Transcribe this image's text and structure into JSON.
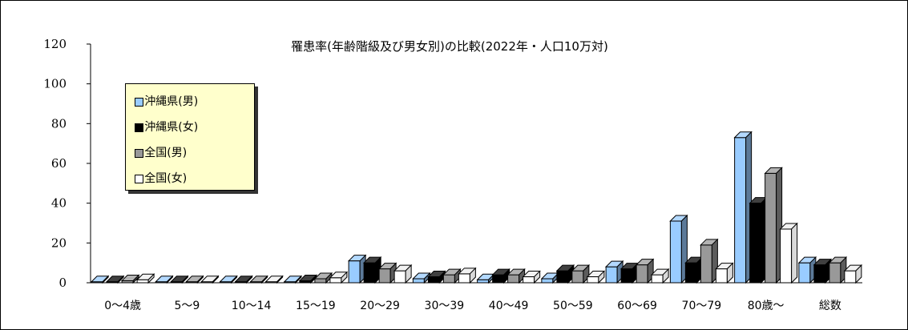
{
  "chart_data": {
    "type": "bar",
    "title": "罹患率(年齢階級及び男女別)の比較(2022年・人口10万対)",
    "categories": [
      "0～4歳",
      "5～9",
      "10～14",
      "15～19",
      "20～29",
      "30～39",
      "40～49",
      "50～59",
      "60～69",
      "70～79",
      "80歳～",
      "総数"
    ],
    "yticks": [
      "0",
      "20",
      "40",
      "60",
      "80",
      "100",
      "120"
    ],
    "ylim": [
      0,
      120
    ],
    "legend_position": "upper-left",
    "grid": false,
    "series": [
      {
        "name": "■沖縄県(男)",
        "color": "#99ccff",
        "values": [
          0.5,
          0.5,
          0.5,
          0.5,
          11,
          2,
          1.5,
          2,
          8,
          31,
          73,
          10
        ]
      },
      {
        "name": "■沖縄県(女)",
        "color": "#000000",
        "values": [
          0.5,
          0.5,
          0.5,
          1,
          10,
          3,
          4,
          6,
          7,
          10,
          40,
          9
        ]
      },
      {
        "name": "■全国(男)",
        "color": "#999999",
        "values": [
          1,
          0.5,
          0.5,
          2,
          7,
          4,
          4,
          6,
          9,
          19,
          55,
          10
        ]
      },
      {
        "name": "□全国(女)",
        "color": "#ffffff",
        "values": [
          1.5,
          0.5,
          0.5,
          2.5,
          6,
          4.5,
          3,
          3,
          4,
          7,
          27,
          6
        ]
      }
    ]
  }
}
